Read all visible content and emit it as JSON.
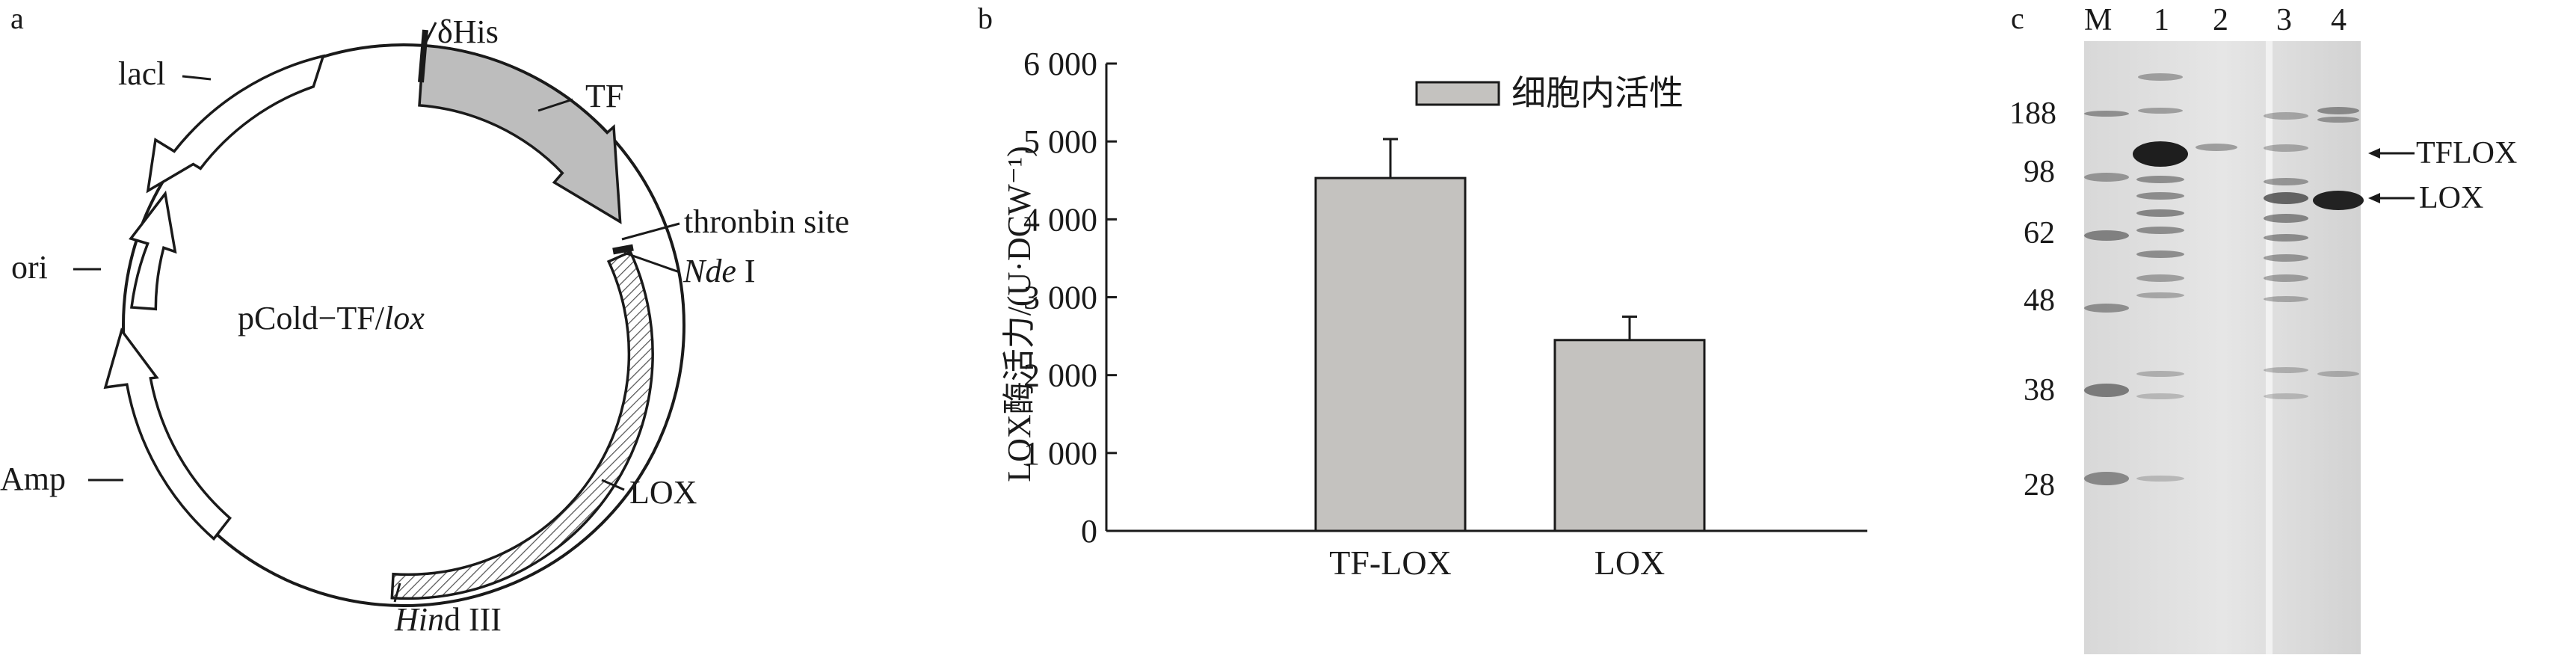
{
  "figure": {
    "panel_a": {
      "letter": "a",
      "plasmid_name": "pCold−TF/",
      "plasmid_name_italic": "lox",
      "features": {
        "dhis": "δHis",
        "tf": "TF",
        "thrombin": "thronbin site",
        "nde_italic": "Nde",
        "nde_rest": " I",
        "lox": "LOX",
        "hind_italic": "Hin",
        "hind_rest": "d III",
        "amp": "Amp",
        "ori": "ori",
        "lacl": "lacl"
      }
    },
    "panel_b": {
      "letter": "b"
    },
    "panel_c": {
      "letter": "c",
      "lane_labels": [
        "M",
        "1",
        "2",
        "3",
        "4"
      ],
      "marker_sizes": [
        "188",
        "98",
        "62",
        "48",
        "38",
        "28"
      ],
      "band_labels": [
        "TFLOX",
        "LOX"
      ]
    }
  },
  "chart_data": {
    "type": "bar",
    "categories": [
      "TF-LOX",
      "LOX"
    ],
    "series": [
      {
        "name": "细胞内活性",
        "values": [
          4530,
          2450
        ],
        "errors": [
          500,
          300
        ],
        "color": "#c4c2bf"
      }
    ],
    "ylabel": "LOX酶活力/(U·DCW⁻¹)",
    "ylim": [
      0,
      6000
    ],
    "yticks": [
      0,
      1000,
      2000,
      3000,
      4000,
      5000,
      6000
    ],
    "ytick_labels": [
      "0",
      "1 000",
      "2 000",
      "3 000",
      "4 000",
      "5 000",
      "6 000"
    ],
    "legend_position": "top-right",
    "grid": false
  }
}
